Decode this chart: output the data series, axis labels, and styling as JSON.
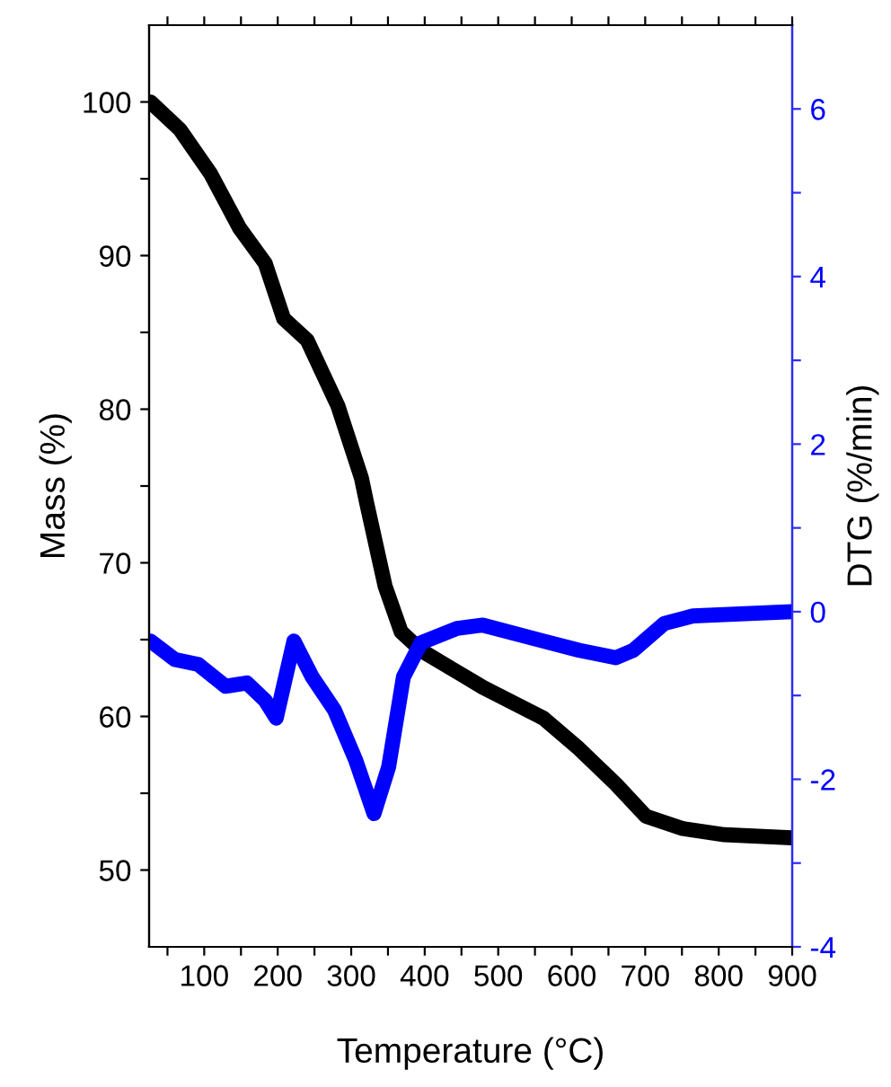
{
  "chart_data": {
    "type": "line",
    "xlabel": "Temperature (°C)",
    "ylabel": "Mass (%)",
    "y2label": "DTG (%/min)",
    "xlim": [
      25,
      900
    ],
    "ylim": [
      45,
      105
    ],
    "y2lim": [
      -4,
      7
    ],
    "xticks": [
      {
        "value": 50,
        "label": null
      },
      100,
      {
        "value": 150,
        "label": null
      },
      200,
      {
        "value": 250,
        "label": null
      },
      300,
      {
        "value": 350,
        "label": null
      },
      400,
      {
        "value": 450,
        "label": null
      },
      500,
      {
        "value": 550,
        "label": null
      },
      600,
      {
        "value": 650,
        "label": null
      },
      700,
      {
        "value": 750,
        "label": null
      },
      800,
      {
        "value": 850,
        "label": null
      },
      900
    ],
    "yticks": [
      50,
      {
        "value": 55,
        "label": null
      },
      60,
      {
        "value": 65,
        "label": null
      },
      70,
      {
        "value": 75,
        "label": null
      },
      80,
      {
        "value": 85,
        "label": null
      },
      90,
      {
        "value": 95,
        "label": null
      },
      100
    ],
    "y2ticks": [
      -4,
      {
        "value": -3,
        "label": null
      },
      -2,
      {
        "value": -1,
        "label": null
      },
      0,
      {
        "value": 1,
        "label": null
      },
      2,
      {
        "value": 3,
        "label": null
      },
      4,
      {
        "value": 5,
        "label": null
      },
      6
    ],
    "grid": false,
    "legend": false,
    "marker": "none",
    "line_style": "solid",
    "series": [
      {
        "color": "#000000",
        "x": [
          27,
          67,
          109,
          148,
          183,
          208,
          240,
          282,
          314,
          321,
          346,
          368,
          395,
          479,
          561,
          610,
          660,
          701,
          751,
          808,
          900
        ],
        "values": [
          100,
          98.2,
          95.3,
          91.8,
          89.5,
          85.9,
          84.5,
          80.2,
          75.5,
          73.9,
          68.5,
          65.5,
          64.3,
          61.9,
          59.9,
          57.9,
          55.6,
          53.5,
          52.7,
          52.3,
          52.1
        ]
      },
      {
        "color": "#0000ff",
        "axis": "y2",
        "x": [
          27,
          60,
          92,
          129,
          158,
          183,
          198,
          222,
          247,
          277,
          306,
          331,
          351,
          371,
          395,
          444,
          479,
          561,
          610,
          660,
          684,
          726,
          765,
          900
        ],
        "values": [
          -0.35,
          -0.57,
          -0.63,
          -0.89,
          -0.85,
          -1.06,
          -1.27,
          -0.35,
          -0.78,
          -1.17,
          -1.77,
          -2.41,
          -1.85,
          -0.78,
          -0.37,
          -0.2,
          -0.16,
          -0.35,
          -0.46,
          -0.55,
          -0.46,
          -0.14,
          -0.05,
          0.0
        ]
      }
    ]
  }
}
